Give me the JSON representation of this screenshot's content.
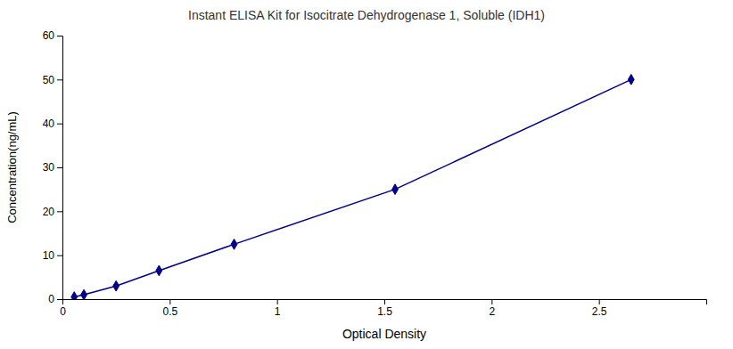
{
  "chart_data": {
    "type": "line",
    "title": "Instant ELISA Kit for Isocitrate Dehydrogenase 1, Soluble (IDH1)",
    "xlabel": "Optical Density",
    "ylabel": "Concentration(ng/mL)",
    "x": [
      0.055,
      0.1,
      0.25,
      0.45,
      0.8,
      1.55,
      2.65
    ],
    "values": [
      0.5,
      1.0,
      3.0,
      6.5,
      12.5,
      25.0,
      50.0
    ],
    "color": "#00008B",
    "marker": "diamond",
    "xlim": [
      0,
      3
    ],
    "ylim": [
      0,
      60
    ],
    "xticks": [
      0,
      0.5,
      1,
      1.5,
      2,
      2.5
    ],
    "yticks": [
      0,
      10,
      20,
      30,
      40,
      50,
      60
    ]
  }
}
